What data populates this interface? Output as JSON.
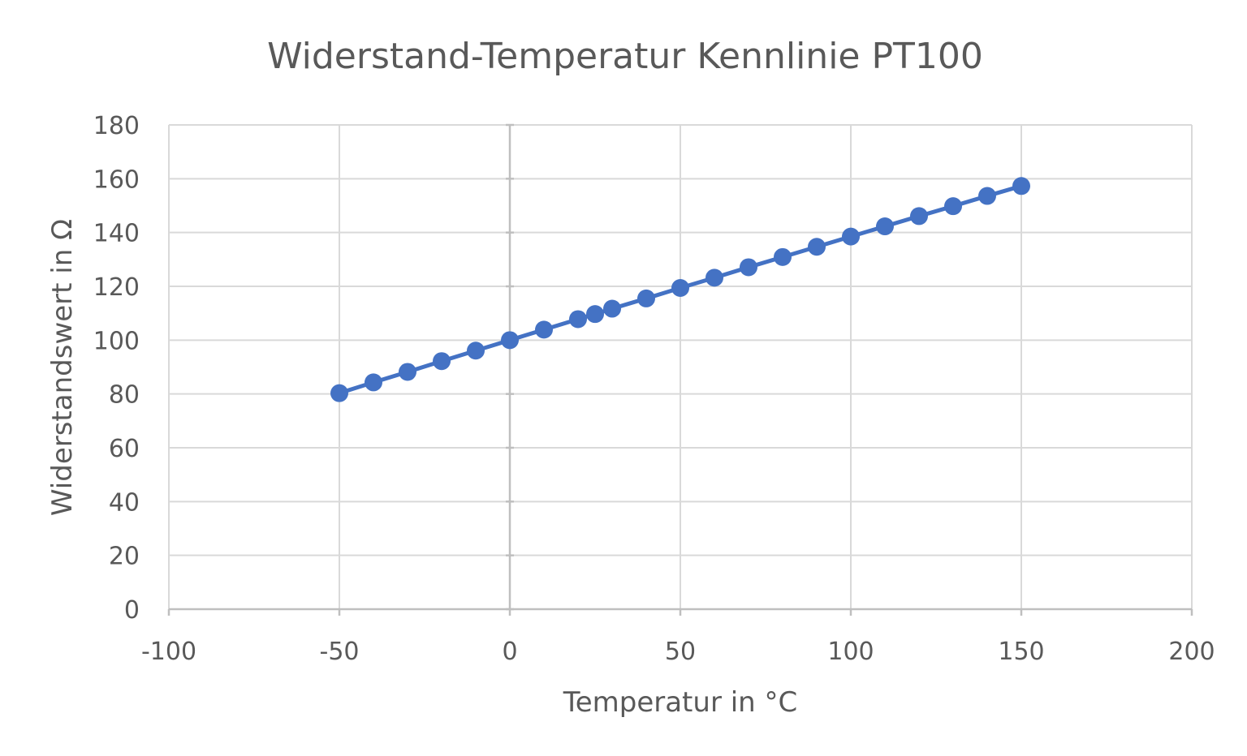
{
  "chart_data": {
    "type": "scatter",
    "title": "Widerstand-Temperatur Kennlinie PT100",
    "xlabel": "Temperatur in °C",
    "ylabel": "Widerstandswert in Ω",
    "xlim": [
      -100,
      200
    ],
    "ylim": [
      0,
      180
    ],
    "x_ticks": [
      -100,
      -50,
      0,
      50,
      100,
      150,
      200
    ],
    "y_ticks": [
      0,
      20,
      40,
      60,
      80,
      100,
      120,
      140,
      160,
      180
    ],
    "grid": true,
    "legend": "none",
    "series": [
      {
        "color": "#4472c4",
        "x": [
          -50,
          -40,
          -30,
          -20,
          -10,
          0,
          10,
          20,
          25,
          30,
          40,
          50,
          60,
          70,
          80,
          90,
          100,
          110,
          120,
          130,
          140,
          150
        ],
        "y": [
          80.3,
          84.3,
          88.2,
          92.2,
          96.1,
          100.0,
          103.9,
          107.8,
          109.7,
          111.7,
          115.5,
          119.4,
          123.2,
          127.1,
          130.9,
          134.7,
          138.5,
          142.3,
          146.1,
          149.8,
          153.6,
          157.3
        ]
      }
    ]
  }
}
